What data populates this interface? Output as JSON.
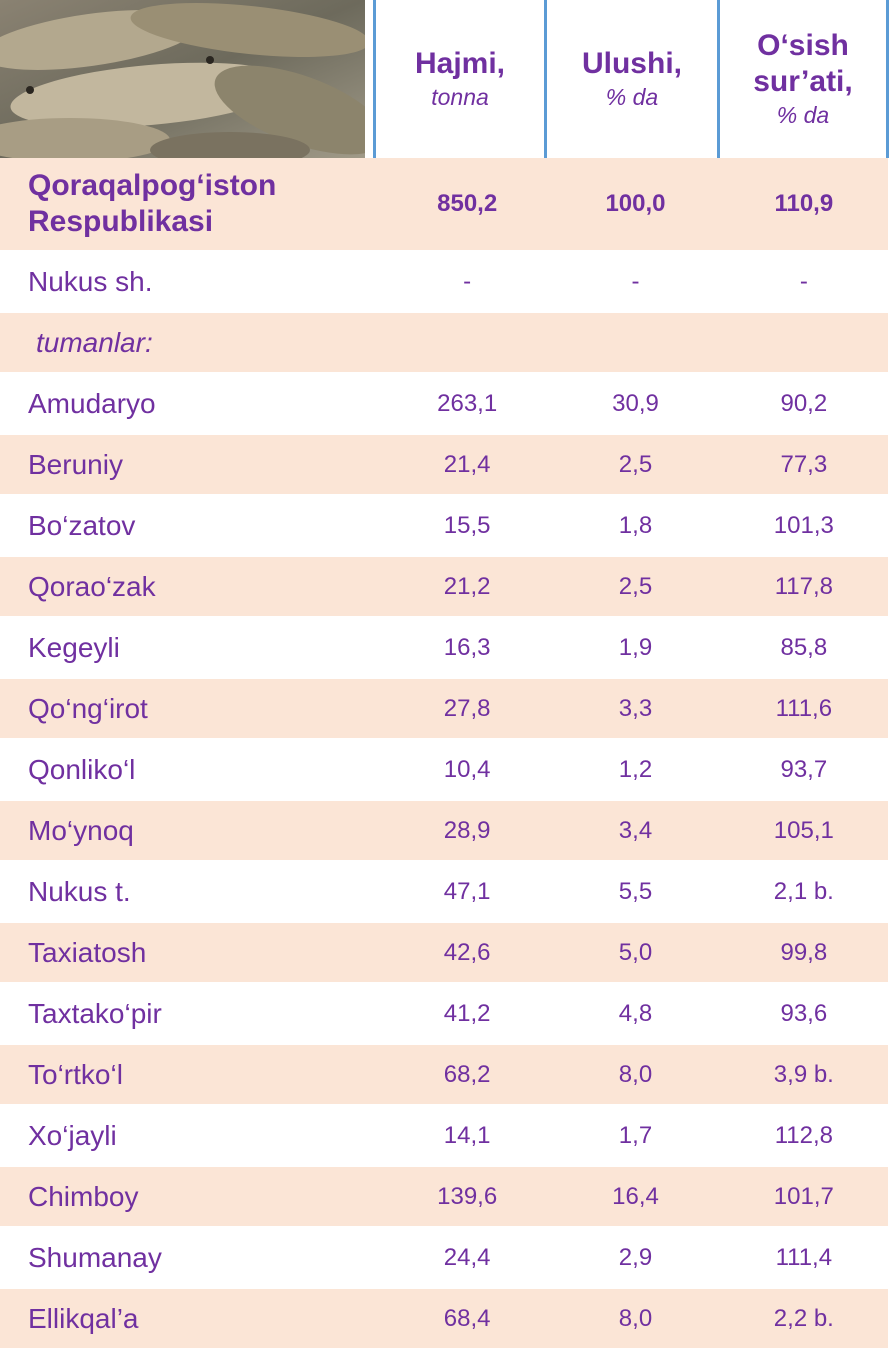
{
  "header": {
    "columns": [
      {
        "title": "Hajmi,",
        "unit": "tonna"
      },
      {
        "title": "Ulushi,",
        "unit": "% da"
      },
      {
        "title": "O‘sish sur’ati,",
        "unit": "% da"
      }
    ]
  },
  "table": {
    "rows": [
      {
        "label": "Qoraqalpog‘iston Respublikasi",
        "values": [
          "850,2",
          "100,0",
          "110,9"
        ]
      },
      {
        "label": "Nukus  sh.",
        "values": [
          "-",
          "-",
          "-"
        ]
      },
      {
        "label": "tumanlar:"
      },
      {
        "label": "Amudaryo",
        "values": [
          "263,1",
          "30,9",
          "90,2"
        ]
      },
      {
        "label": "Beruniy",
        "values": [
          "21,4",
          "2,5",
          "77,3"
        ]
      },
      {
        "label": "Bo‘zatov",
        "values": [
          "15,5",
          "1,8",
          "101,3"
        ]
      },
      {
        "label": "Qorao‘zak",
        "values": [
          "21,2",
          "2,5",
          "117,8"
        ]
      },
      {
        "label": "Kegeyli",
        "values": [
          "16,3",
          "1,9",
          "85,8"
        ]
      },
      {
        "label": "Qo‘ng‘irot",
        "values": [
          "27,8",
          "3,3",
          "111,6"
        ]
      },
      {
        "label": "Qonliko‘l",
        "values": [
          "10,4",
          "1,2",
          "93,7"
        ]
      },
      {
        "label": "Mo‘ynoq",
        "values": [
          "28,9",
          "3,4",
          "105,1"
        ]
      },
      {
        "label": "Nukus t.",
        "values": [
          "47,1",
          "5,5",
          "2,1 b."
        ]
      },
      {
        "label": "Taxiatosh",
        "values": [
          "42,6",
          "5,0",
          "99,8"
        ]
      },
      {
        "label": "Taxtako‘pir",
        "values": [
          "41,2",
          "4,8",
          "93,6"
        ]
      },
      {
        "label": "To‘rtko‘l",
        "values": [
          "68,2",
          "8,0",
          "3,9 b."
        ]
      },
      {
        "label": "Xo‘jayli",
        "values": [
          "14,1",
          "1,7",
          "112,8"
        ]
      },
      {
        "label": "Chimboy",
        "values": [
          "139,6",
          "16,4",
          "101,7"
        ]
      },
      {
        "label": "Shumanay",
        "values": [
          "24,4",
          "2,9",
          "111,4"
        ]
      },
      {
        "label": "Ellikqal’a",
        "values": [
          "68,4",
          "8,0",
          "2,2 b."
        ]
      }
    ]
  }
}
